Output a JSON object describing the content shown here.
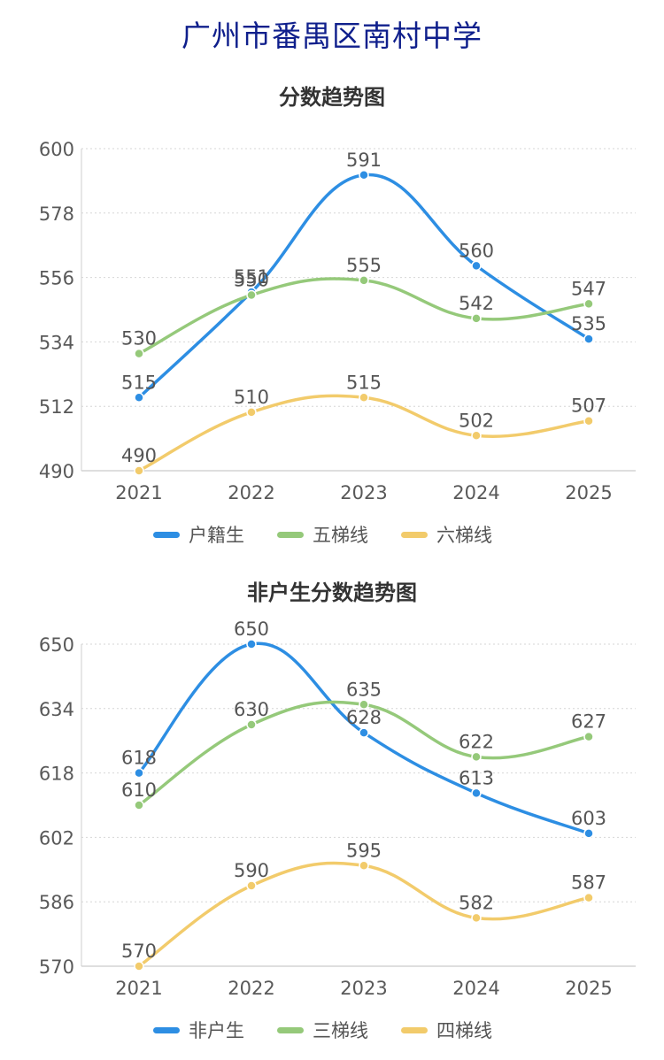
{
  "page_title": "广州市番禺区南村中学",
  "chart_data": [
    {
      "type": "line",
      "title": "分数趋势图",
      "categories": [
        "2021",
        "2022",
        "2023",
        "2024",
        "2025"
      ],
      "yticks": [
        490,
        512,
        534,
        556,
        578,
        600
      ],
      "ylim": [
        490,
        600
      ],
      "grid": true,
      "legend_position": "bottom",
      "series": [
        {
          "name": "户籍生",
          "color": "#2d8ee3",
          "values": [
            515,
            551,
            591,
            560,
            535
          ]
        },
        {
          "name": "五梯线",
          "color": "#95c97a",
          "values": [
            530,
            550,
            555,
            542,
            547
          ]
        },
        {
          "name": "六梯线",
          "color": "#f2cb6b",
          "values": [
            490,
            510,
            515,
            502,
            507
          ]
        }
      ]
    },
    {
      "type": "line",
      "title": "非户生分数趋势图",
      "categories": [
        "2021",
        "2022",
        "2023",
        "2024",
        "2025"
      ],
      "yticks": [
        570,
        586,
        602,
        618,
        634,
        650
      ],
      "ylim": [
        570,
        650
      ],
      "grid": true,
      "legend_position": "bottom",
      "series": [
        {
          "name": "非户生",
          "color": "#2d8ee3",
          "values": [
            618,
            650,
            628,
            613,
            603
          ]
        },
        {
          "name": "三梯线",
          "color": "#95c97a",
          "values": [
            610,
            630,
            635,
            622,
            627
          ]
        },
        {
          "name": "四梯线",
          "color": "#f2cb6b",
          "values": [
            570,
            590,
            595,
            582,
            587
          ]
        }
      ]
    }
  ]
}
